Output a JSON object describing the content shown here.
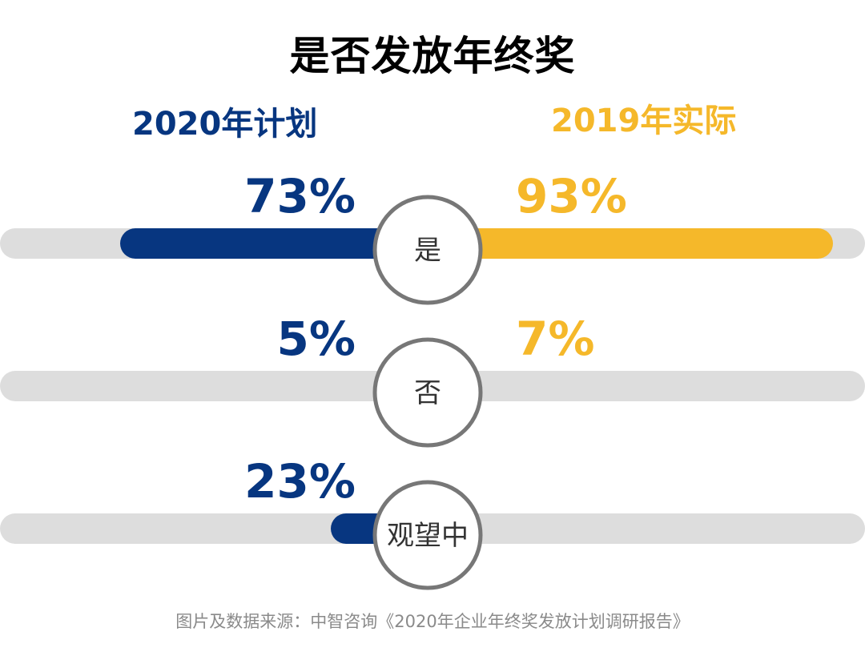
{
  "title": "是否发放年终奖",
  "source": "图片及数据来源：中智咨询《2020年企业年终奖发放计划调研报告》",
  "colors": {
    "left_series": "#073680",
    "right_series": "#F5B82A",
    "track": "#DDDDDD",
    "circle_border": "#777777",
    "circle_text": "#333333"
  },
  "chart_data": {
    "type": "bar",
    "title": "是否发放年终奖",
    "categories": [
      "是",
      "否",
      "观望中"
    ],
    "series": [
      {
        "name": "2020年计划",
        "values": [
          73,
          5,
          23
        ],
        "labels": [
          "73%",
          "5%",
          "23%"
        ]
      },
      {
        "name": "2019年实际",
        "values": [
          93,
          7,
          null
        ],
        "labels": [
          "93%",
          "7%",
          ""
        ]
      }
    ],
    "unit": "%",
    "ylim": [
      0,
      100
    ],
    "legend": "top"
  }
}
